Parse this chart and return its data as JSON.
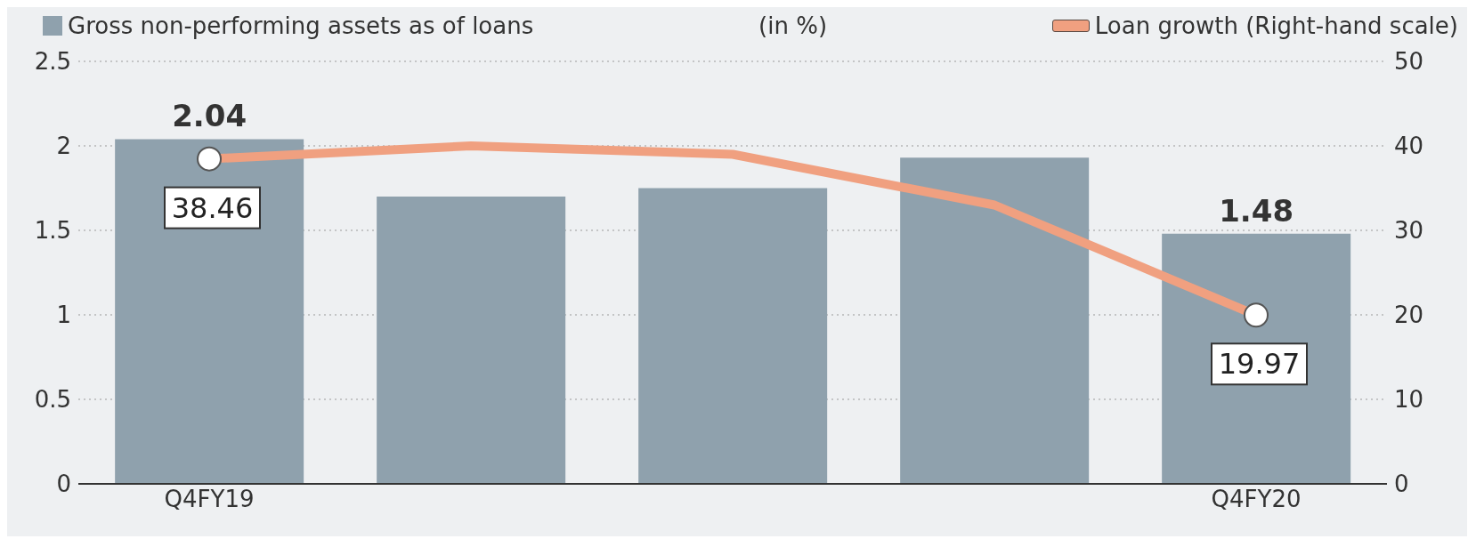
{
  "chart_data": {
    "type": "bar",
    "categories": [
      "Q4FY19",
      null,
      null,
      null,
      "Q4FY20"
    ],
    "series": [
      {
        "name": "Gross non-performing assets as of loans",
        "color": "#8fa1ad",
        "values": [
          2.04,
          1.7,
          1.75,
          1.93,
          1.48
        ],
        "value_labels": [
          "2.04",
          null,
          null,
          null,
          "1.48"
        ]
      },
      {
        "name": "Loan growth (Right-hand scale)",
        "type": "line",
        "axis": "y2",
        "color": "#f0a080",
        "values": [
          38.46,
          40,
          39,
          33,
          19.97
        ],
        "value_labels": [
          "38.46",
          null,
          null,
          null,
          "19.97"
        ]
      }
    ],
    "annotations": [
      "(in %)"
    ],
    "ylim": [
      0,
      2.5
    ],
    "yticks": [
      0,
      0.5,
      1,
      1.5,
      2,
      2.5
    ],
    "y2lim": [
      0,
      50
    ],
    "y2ticks": [
      0,
      10,
      20,
      30,
      40,
      50
    ],
    "grid": "y",
    "legend": "top",
    "line_style": "solid"
  }
}
